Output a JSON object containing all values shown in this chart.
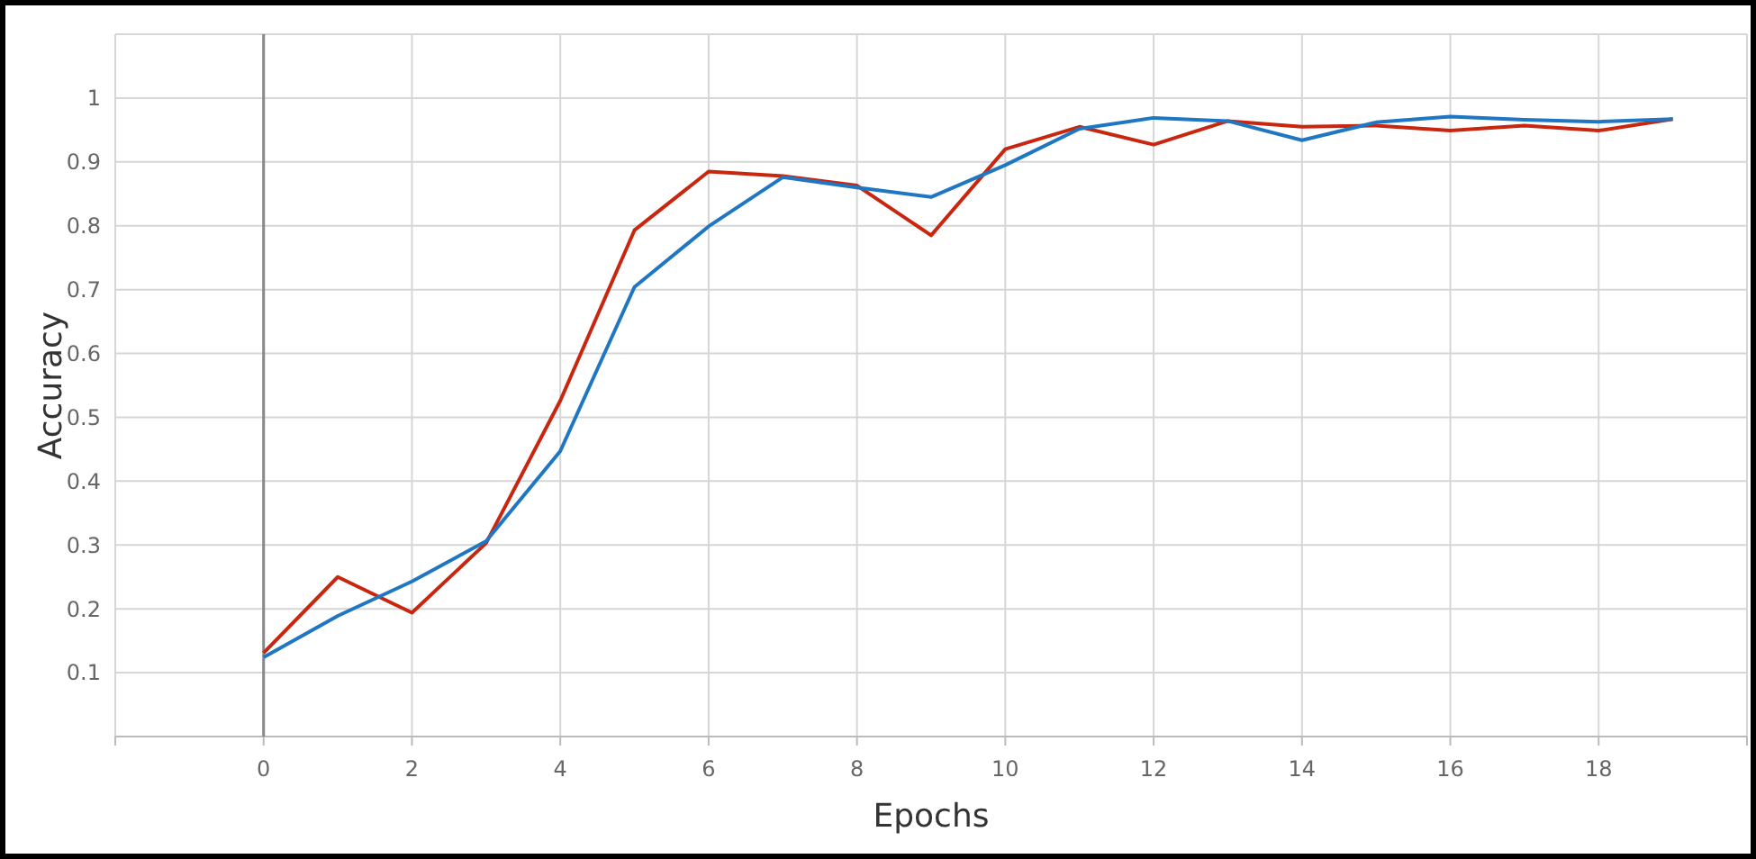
{
  "chart_data": {
    "type": "line",
    "xlabel": "Epochs",
    "ylabel": "Accuracy",
    "x": [
      0,
      1,
      2,
      3,
      4,
      5,
      6,
      7,
      8,
      9,
      10,
      11,
      12,
      13,
      14,
      15,
      16,
      17,
      18,
      19
    ],
    "series": [
      {
        "color": "#c8260f",
        "values": [
          0.131,
          0.25,
          0.194,
          0.303,
          0.526,
          0.793,
          0.885,
          0.878,
          0.863,
          0.785,
          0.92,
          0.955,
          0.927,
          0.964,
          0.955,
          0.957,
          0.949,
          0.957,
          0.949,
          0.967
        ]
      },
      {
        "color": "#1f77c4",
        "values": [
          0.124,
          0.189,
          0.243,
          0.306,
          0.447,
          0.704,
          0.799,
          0.876,
          0.86,
          0.845,
          0.895,
          0.952,
          0.969,
          0.964,
          0.934,
          0.962,
          0.971,
          0.966,
          0.963,
          0.967
        ]
      }
    ],
    "xlim": [
      -2,
      20
    ],
    "xticks": [
      {
        "value": -2,
        "label": null
      },
      0,
      2,
      4,
      6,
      8,
      10,
      12,
      14,
      16,
      18,
      {
        "value": 20,
        "label": null
      }
    ],
    "ylim": [
      0,
      1.1
    ],
    "yticks": [
      {
        "value": 0,
        "label": null
      },
      0.1,
      0.2,
      0.3,
      0.4,
      0.5,
      0.6,
      0.7,
      0.8,
      0.9,
      1,
      {
        "value": 1.1,
        "label": null
      }
    ],
    "grid": true,
    "marker": "none",
    "line_style": "solid"
  }
}
